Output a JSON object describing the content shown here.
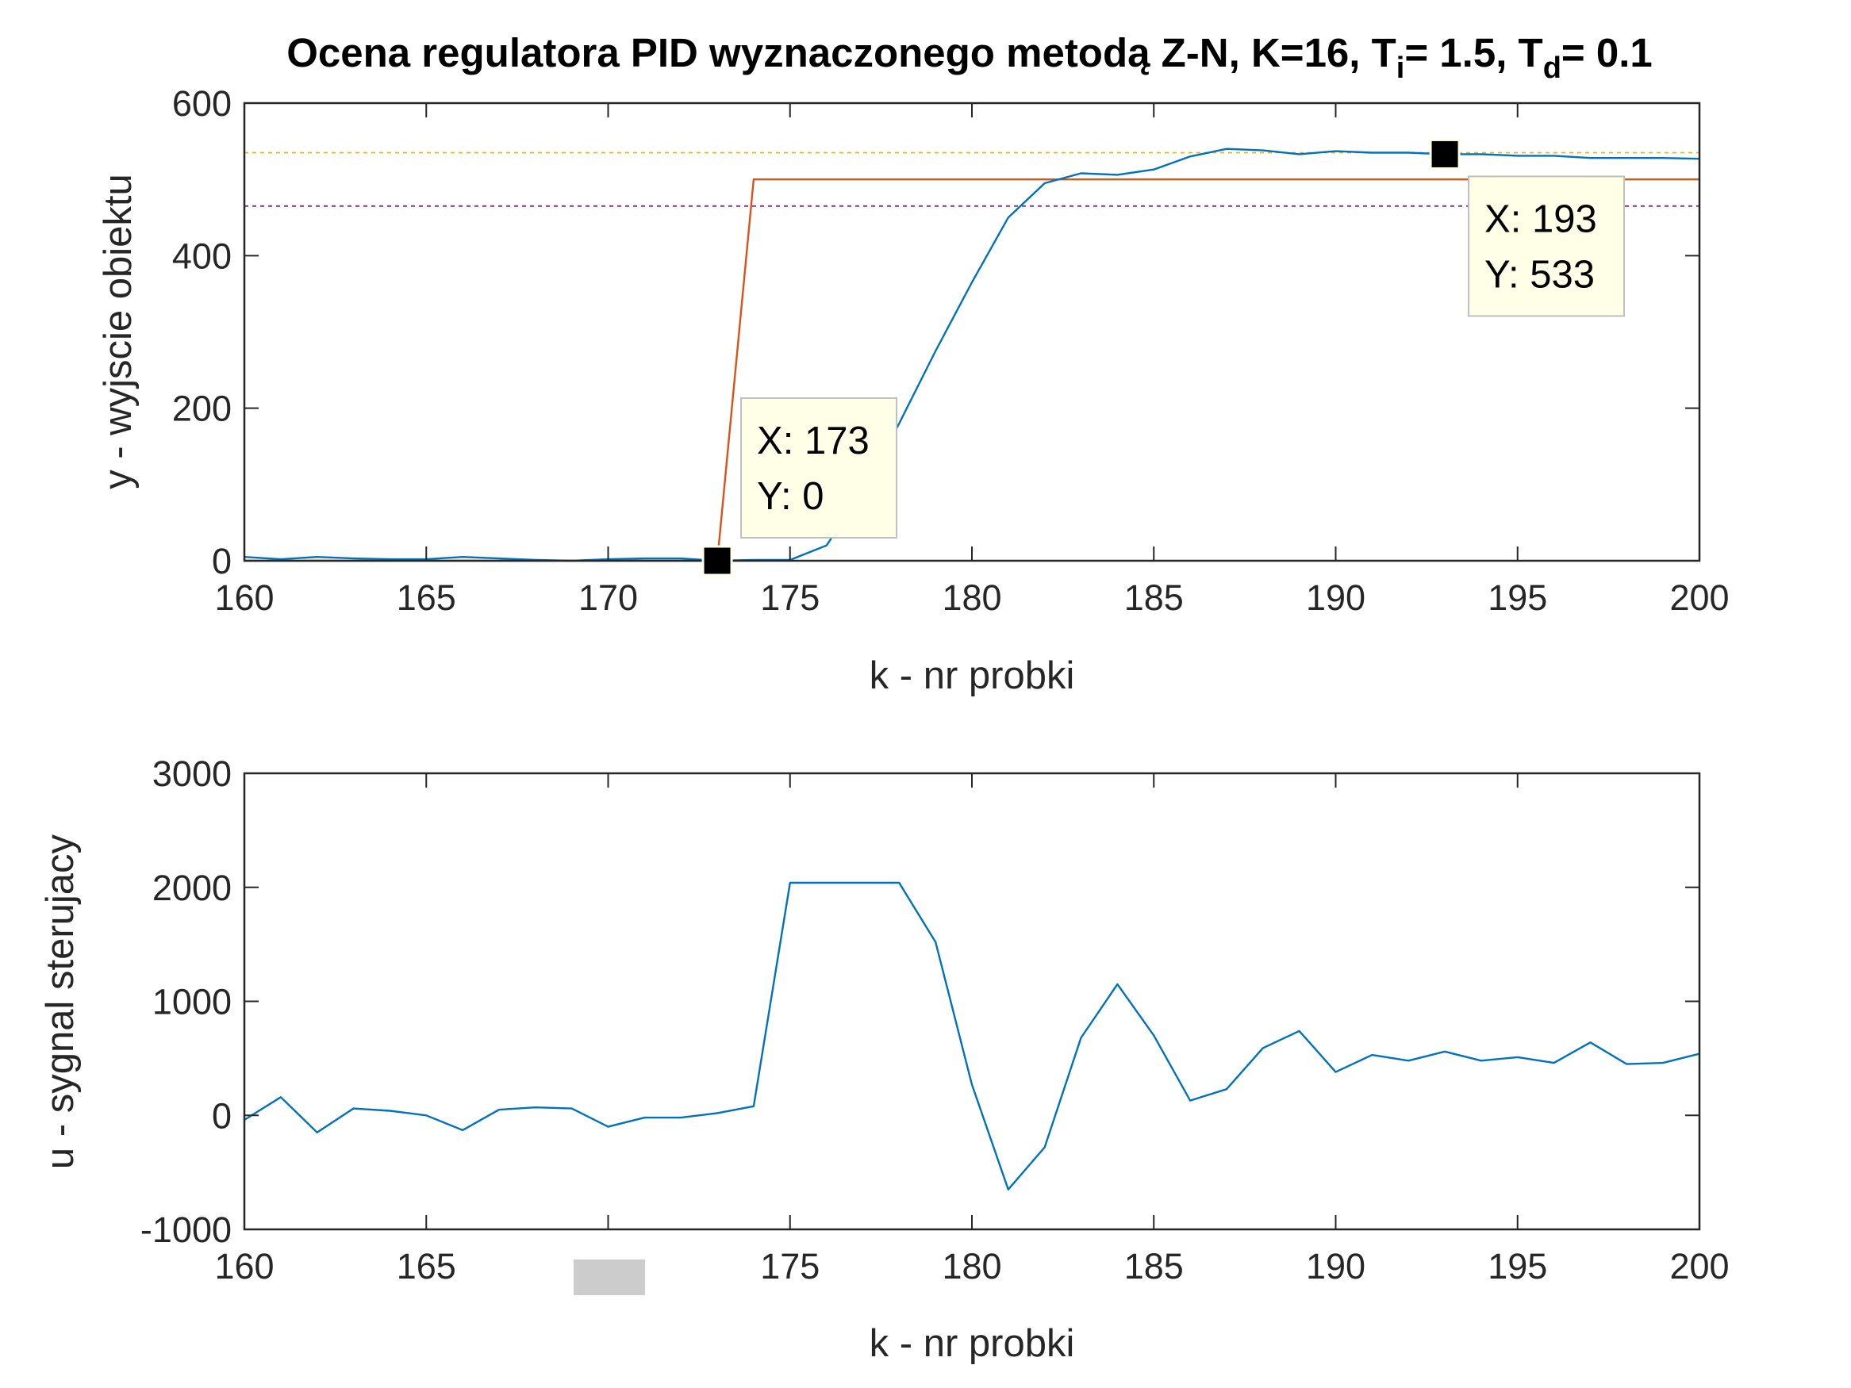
{
  "figure": {
    "title_main": "Ocena regulatora PID wyznaczonego metodą Z-N, K=16, T",
    "title_sub_i": "i",
    "title_mid": "= 1.5, T",
    "title_sub_d": "d",
    "title_end": "= 0.1"
  },
  "colors": {
    "output": "#0072BD",
    "setpoint": "#D95319",
    "upper_band": "#EDB120",
    "lower_band": "#7E2F8E",
    "axes": "#262626",
    "tooltip_bg": "#FFFFE8",
    "redaction": "#CCCCCC"
  },
  "chart_data": [
    {
      "type": "line",
      "xlabel": "k - nr probki",
      "ylabel": "y - wyjscie obiektu",
      "xlim": [
        160,
        200
      ],
      "ylim": [
        0,
        600
      ],
      "xticks": [
        "160",
        "165",
        "170",
        "175",
        "180",
        "185",
        "190",
        "195",
        "200"
      ],
      "yticks": [
        "0",
        "200",
        "400",
        "600"
      ],
      "grid": false,
      "series": [
        {
          "key": "output",
          "x": [
            160,
            161,
            162,
            163,
            164,
            165,
            166,
            167,
            168,
            169,
            170,
            171,
            172,
            173,
            174,
            175,
            176,
            177,
            178,
            179,
            180,
            181,
            182,
            183,
            184,
            185,
            186,
            187,
            188,
            189,
            190,
            191,
            192,
            193,
            194,
            195,
            196,
            197,
            198,
            199,
            200
          ],
          "values": [
            5,
            2,
            5,
            3,
            2,
            2,
            5,
            3,
            1,
            0,
            2,
            3,
            3,
            0,
            1,
            1,
            20,
            90,
            180,
            275,
            365,
            450,
            495,
            508,
            506,
            513,
            530,
            540,
            538,
            533,
            537,
            535,
            535,
            533,
            533,
            531,
            531,
            528,
            528,
            528,
            527
          ]
        },
        {
          "key": "setpoint",
          "x": [
            160,
            173,
            174,
            200
          ],
          "values": [
            0,
            0,
            500,
            500
          ]
        },
        {
          "key": "upper_band",
          "x": [
            160,
            200
          ],
          "values": [
            535,
            535
          ]
        },
        {
          "key": "lower_band",
          "x": [
            160,
            200
          ],
          "values": [
            465,
            465
          ]
        }
      ],
      "datatips": [
        {
          "x": 173,
          "y": 0,
          "line1": "X: 173",
          "line2": "Y: 0"
        },
        {
          "x": 193,
          "y": 533,
          "line1": "X: 193",
          "line2": "Y: 533"
        }
      ]
    },
    {
      "type": "line",
      "xlabel": "k - nr probki",
      "ylabel": "u - sygnal sterujacy",
      "xlim": [
        160,
        200
      ],
      "ylim": [
        -1000,
        3000
      ],
      "xticks": [
        "160",
        "165",
        "",
        "175",
        "180",
        "185",
        "190",
        "195",
        "200"
      ],
      "yticks": [
        "-1000",
        "0",
        "1000",
        "2000",
        "3000"
      ],
      "grid": false,
      "series": [
        {
          "key": "output",
          "x": [
            160,
            161,
            162,
            163,
            164,
            165,
            166,
            167,
            168,
            169,
            170,
            171,
            172,
            173,
            174,
            175,
            176,
            177,
            178,
            179,
            180,
            181,
            182,
            183,
            184,
            185,
            186,
            187,
            188,
            189,
            190,
            191,
            192,
            193,
            194,
            195,
            196,
            197,
            198,
            199,
            200
          ],
          "values": [
            -40,
            160,
            -150,
            60,
            40,
            0,
            -130,
            50,
            70,
            60,
            -100,
            -20,
            -20,
            20,
            80,
            2040,
            2040,
            2040,
            2040,
            1520,
            270,
            -650,
            -280,
            680,
            1150,
            700,
            130,
            230,
            590,
            740,
            380,
            530,
            480,
            560,
            480,
            510,
            460,
            640,
            450,
            460,
            540
          ]
        }
      ]
    }
  ]
}
